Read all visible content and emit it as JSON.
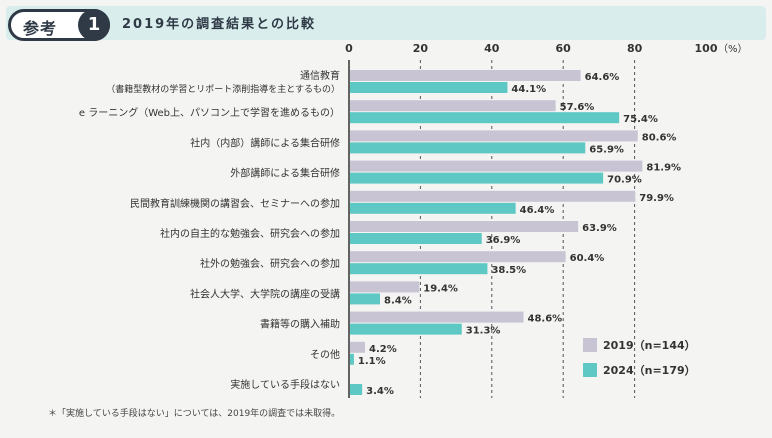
{
  "header": {
    "badge_label": "参考",
    "badge_number": "1",
    "title": "2019年の調査結果との比較"
  },
  "footnote": "＊「実施している手段はない」については、2019年の調査では未取得。",
  "colors": {
    "series_2019": "#c8c4d4",
    "series_2024": "#5ec8c4",
    "header_bg": "#d9eeec",
    "dark": "#2f3a46"
  },
  "chart_data": {
    "type": "bar",
    "orientation": "horizontal",
    "x_ticks": [
      "0",
      "20",
      "40",
      "60",
      "80",
      "100"
    ],
    "x_unit": "（%）",
    "xlim": [
      0,
      100
    ],
    "categories": [
      [
        "通信教育",
        "（書籍型教材の学習とリポート添削指導を主とするもの）"
      ],
      [
        "e ラーニング（Web上、パソコン上で学習を進めるもの）"
      ],
      [
        "社内（内部）講師による集合研修"
      ],
      [
        "外部講師による集合研修"
      ],
      [
        "民間教育訓練機関の講習会、セミナーへの参加"
      ],
      [
        "社内の自主的な勉強会、研究会への参加"
      ],
      [
        "社外の勉強会、研究会への参加"
      ],
      [
        "社会人大学、大学院の講座の受講"
      ],
      [
        "書籍等の購入補助"
      ],
      [
        "その他"
      ],
      [
        "実施している手段はない"
      ]
    ],
    "series": [
      {
        "name": "2019",
        "legend_label": "2019（n=144）",
        "values": [
          64.6,
          57.6,
          80.6,
          81.9,
          79.9,
          63.9,
          60.4,
          19.4,
          48.6,
          4.2,
          null
        ],
        "labels": [
          "64.6%",
          "57.6%",
          "80.6%",
          "81.9%",
          "79.9%",
          "63.9%",
          "60.4%",
          "19.4%",
          "48.6%",
          "4.2%",
          ""
        ]
      },
      {
        "name": "2024",
        "legend_label": "2024（n=179）",
        "values": [
          44.1,
          75.4,
          65.9,
          70.9,
          46.4,
          36.9,
          38.5,
          8.4,
          31.3,
          1.1,
          3.4
        ],
        "labels": [
          "44.1%",
          "75.4%",
          "65.9%",
          "70.9%",
          "46.4%",
          "36.9%",
          "38.5%",
          "8.4%",
          "31.3%",
          "1.1%",
          "3.4%"
        ]
      }
    ],
    "legend_position": "bottom-right"
  }
}
